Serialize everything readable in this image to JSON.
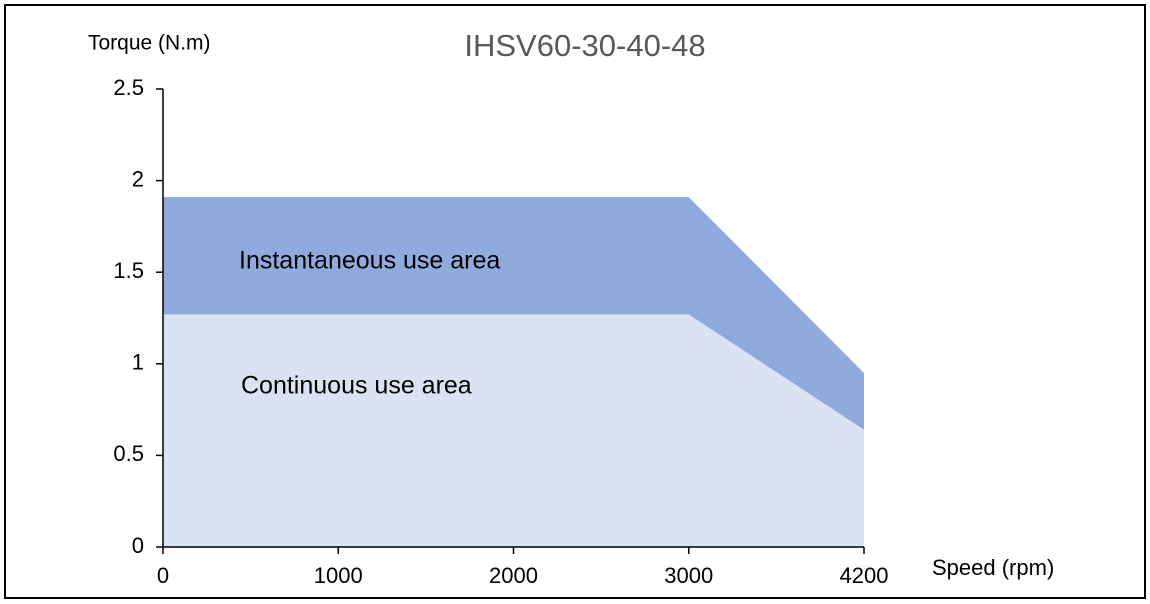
{
  "chart_data": {
    "type": "area",
    "title": "IHSV60-30-40-48",
    "y_label": "Torque (N.m)",
    "x_label": "Speed (rpm)",
    "categories": [
      "0",
      "1000",
      "2000",
      "3000",
      "4200"
    ],
    "series": [
      {
        "name": "Instantaneous use area",
        "color": "#8faadc",
        "values": [
          1.91,
          1.91,
          1.91,
          1.91,
          0.95
        ]
      },
      {
        "name": "Continuous use area",
        "color": "#dae3f3",
        "values": [
          1.27,
          1.27,
          1.27,
          1.27,
          0.64
        ]
      }
    ],
    "ylim": [
      0,
      2.5
    ],
    "yticks": [
      0,
      0.5,
      1,
      1.5,
      2,
      2.5
    ],
    "grid": false
  }
}
